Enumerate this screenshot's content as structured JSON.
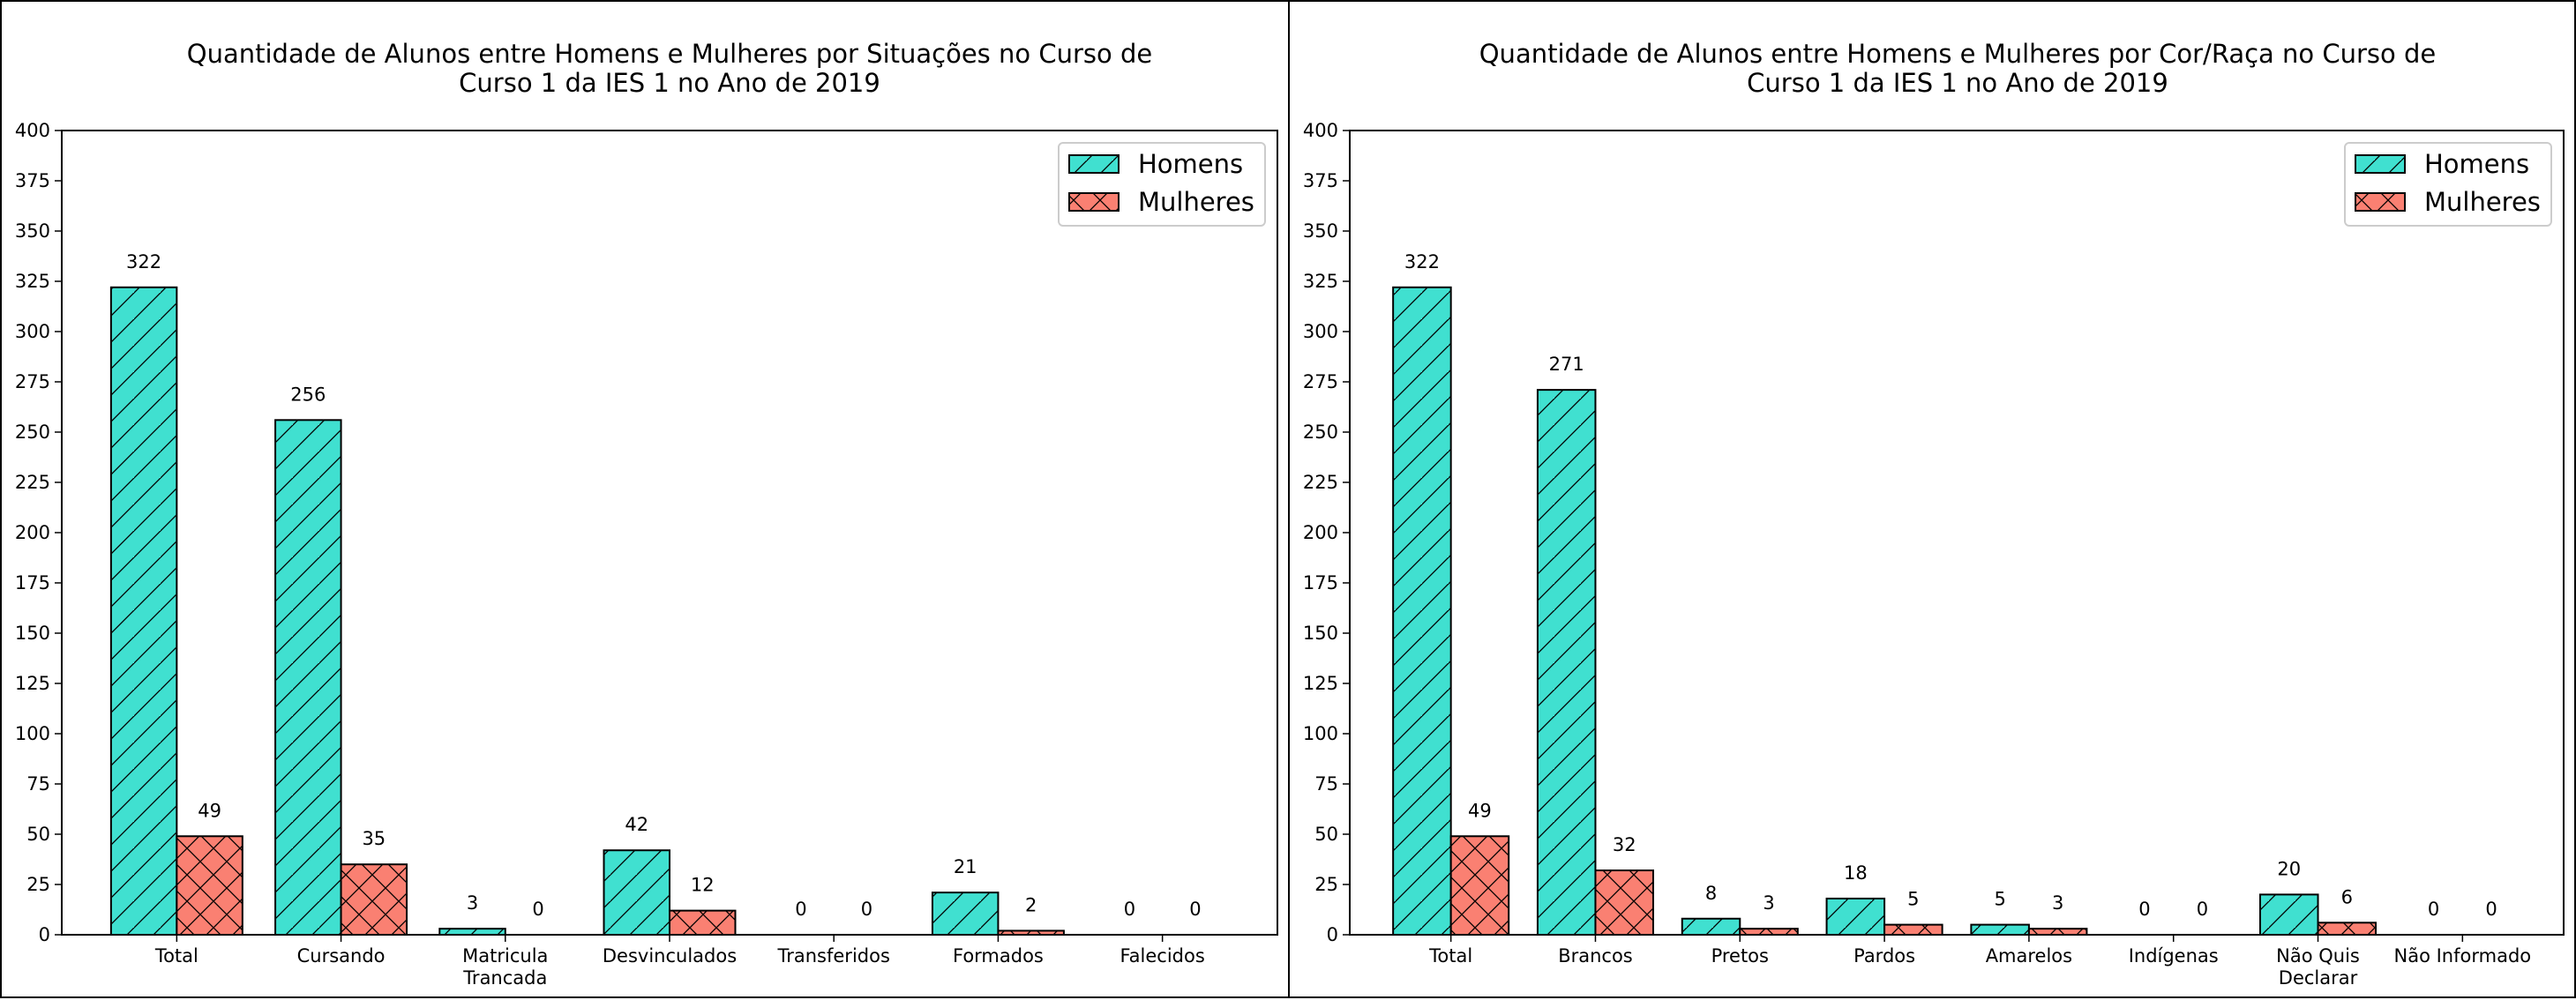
{
  "chart_data": [
    {
      "type": "bar",
      "title": "Quantidade de Alunos entre Homens e Mulheres por Situações no Curso de\nCurso 1 da IES 1 no Ano de 2019",
      "xlabel": "",
      "ylabel": "",
      "ylim": [
        0,
        400
      ],
      "yticks": [
        0,
        25,
        50,
        75,
        100,
        125,
        150,
        175,
        200,
        225,
        250,
        275,
        300,
        325,
        350,
        375,
        400
      ],
      "grid": false,
      "legend_position": "top-right",
      "categories": [
        "Total",
        "Cursando",
        "Matricula\nTrancada",
        "Desvinculados",
        "Transferidos",
        "Formados",
        "Falecidos"
      ],
      "series": [
        {
          "name": "Homens",
          "color": "#40E0D0",
          "hatch": "diagonal",
          "values": [
            322,
            256,
            3,
            42,
            0,
            21,
            0
          ]
        },
        {
          "name": "Mulheres",
          "color": "#FA8072",
          "hatch": "cross",
          "values": [
            49,
            35,
            0,
            12,
            0,
            2,
            0
          ]
        }
      ]
    },
    {
      "type": "bar",
      "title": "Quantidade de Alunos entre Homens e Mulheres por Cor/Raça no Curso de\nCurso 1 da IES 1 no Ano de 2019",
      "xlabel": "",
      "ylabel": "",
      "ylim": [
        0,
        400
      ],
      "yticks": [
        0,
        25,
        50,
        75,
        100,
        125,
        150,
        175,
        200,
        225,
        250,
        275,
        300,
        325,
        350,
        375,
        400
      ],
      "grid": false,
      "legend_position": "top-right",
      "categories": [
        "Total",
        "Brancos",
        "Pretos",
        "Pardos",
        "Amarelos",
        "Indígenas",
        "Não Quis\nDeclarar",
        "Não Informado"
      ],
      "series": [
        {
          "name": "Homens",
          "color": "#40E0D0",
          "hatch": "diagonal",
          "values": [
            322,
            271,
            8,
            18,
            5,
            0,
            20,
            0
          ]
        },
        {
          "name": "Mulheres",
          "color": "#FA8072",
          "hatch": "cross",
          "values": [
            49,
            32,
            3,
            5,
            3,
            0,
            6,
            0
          ]
        }
      ]
    }
  ]
}
